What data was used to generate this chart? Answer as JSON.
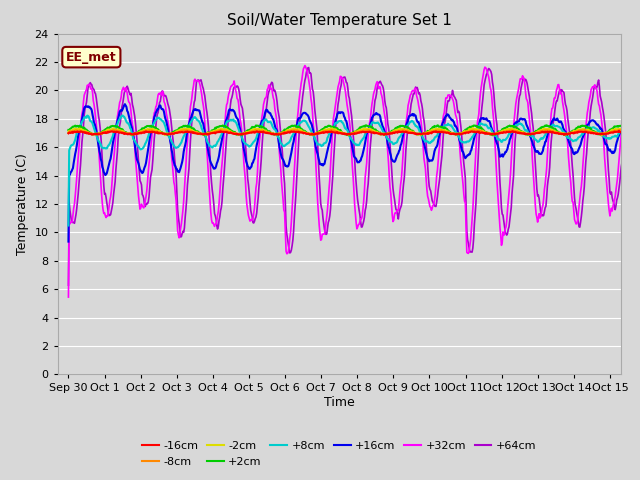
{
  "title": "Soil/Water Temperature Set 1",
  "xlabel": "Time",
  "ylabel": "Temperature (C)",
  "ylim": [
    0,
    24
  ],
  "yticks": [
    0,
    2,
    4,
    6,
    8,
    10,
    12,
    14,
    16,
    18,
    20,
    22,
    24
  ],
  "background_color": "#d8d8d8",
  "annotation_text": "EE_met",
  "annotation_box_color": "#ffffcc",
  "annotation_border_color": "#800000",
  "colors": {
    "-16cm": "#ff0000",
    "-8cm": "#ff8800",
    "-2cm": "#dddd00",
    "+2cm": "#00cc00",
    "+8cm": "#00cccc",
    "+16cm": "#0000ee",
    "+32cm": "#ff00ff",
    "+64cm": "#aa00cc"
  },
  "xtick_labels": [
    "Sep 30",
    "Oct 1",
    "Oct 2",
    "Oct 3",
    "Oct 4",
    "Oct 5",
    "Oct 6",
    "Oct 7",
    "Oct 8",
    "Oct 9",
    "Oct 10",
    "Oct 11",
    "Oct 12",
    "Oct 13",
    "Oct 14",
    "Oct 15"
  ],
  "grid_color": "#ffffff"
}
